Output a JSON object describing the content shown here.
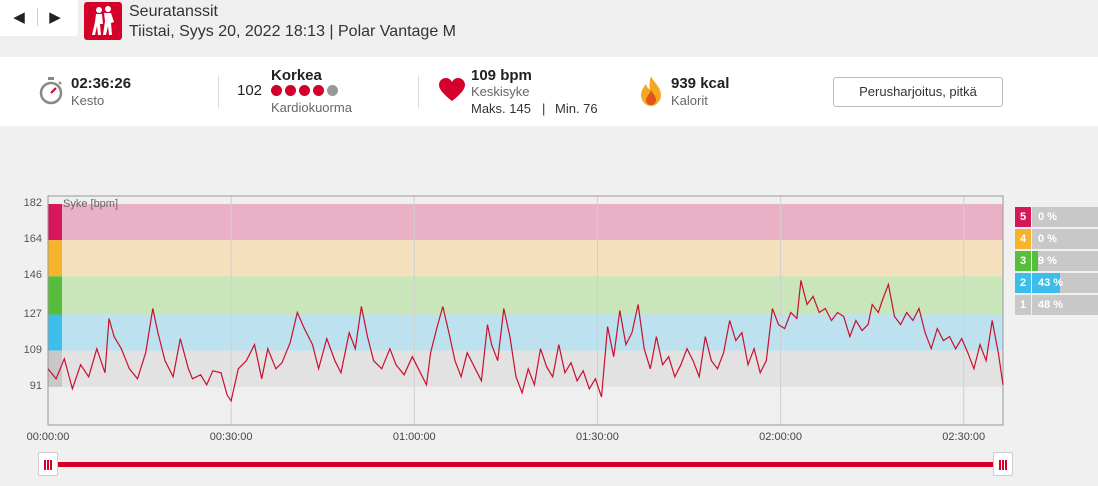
{
  "nav": {
    "prev_glyph": "◀",
    "next_glyph": "▶"
  },
  "header": {
    "sport_icon": "dancing-couple-icon",
    "title": "Seuratanssit",
    "subtitle": "Tiistai, Syys 20, 2022 18:13 | Polar Vantage M"
  },
  "summary": {
    "duration": {
      "icon": "stopwatch-icon",
      "value": "02:36:26",
      "label": "Kesto"
    },
    "cardio_load": {
      "value": "102",
      "level": "Korkea",
      "label": "Kardiokuorma",
      "dots_total": 5,
      "dots_filled": 4
    },
    "heart_rate": {
      "icon": "heart-icon",
      "value": "109 bpm",
      "label": "Keskisyke",
      "max": "Maks. 145",
      "separator": "|",
      "min": "Min. 76"
    },
    "calories": {
      "icon": "flame-icon",
      "value": "939 kcal",
      "label": "Kalorit"
    },
    "training_type_button": "Perusharjoitus, pitkä"
  },
  "chart_data": {
    "type": "line",
    "series_label": "Syke [bpm]",
    "y_ticks": [
      "182",
      "164",
      "146",
      "127",
      "109",
      "91"
    ],
    "y_values": [
      182,
      164,
      146,
      127,
      109,
      91
    ],
    "ylim": [
      72,
      186
    ],
    "x_ticks": [
      "00:00:00",
      "00:30:00",
      "01:00:00",
      "01:30:00",
      "02:00:00",
      "02:30:00"
    ],
    "x_tick_seconds": [
      0,
      1800,
      3600,
      5400,
      7200,
      9000
    ],
    "x_range_seconds": [
      0,
      9386
    ],
    "zones": [
      {
        "zone": "5",
        "from": 164,
        "to": 182,
        "color": "#eab1c6",
        "marker": "#d6175a"
      },
      {
        "zone": "4",
        "from": 146,
        "to": 164,
        "color": "#f5e0bd",
        "marker": "#f7b32b"
      },
      {
        "zone": "3",
        "from": 127,
        "to": 146,
        "color": "#c9e6bb",
        "marker": "#57bd3c"
      },
      {
        "zone": "2",
        "from": 109,
        "to": 127,
        "color": "#bde1ef",
        "marker": "#3dbde9"
      },
      {
        "zone": "1",
        "from": 91,
        "to": 109,
        "color": "#e2e2e2",
        "marker": "#c8c8c8"
      }
    ],
    "line_color": "#c8102e",
    "hr_points": [
      [
        0,
        100
      ],
      [
        80,
        95
      ],
      [
        160,
        105
      ],
      [
        240,
        90
      ],
      [
        320,
        102
      ],
      [
        400,
        96
      ],
      [
        480,
        110
      ],
      [
        560,
        98
      ],
      [
        600,
        125
      ],
      [
        650,
        116
      ],
      [
        720,
        110
      ],
      [
        800,
        100
      ],
      [
        880,
        95
      ],
      [
        960,
        108
      ],
      [
        1030,
        130
      ],
      [
        1080,
        118
      ],
      [
        1150,
        104
      ],
      [
        1230,
        96
      ],
      [
        1300,
        115
      ],
      [
        1380,
        100
      ],
      [
        1420,
        95
      ],
      [
        1500,
        97
      ],
      [
        1560,
        92
      ],
      [
        1620,
        99
      ],
      [
        1700,
        98
      ],
      [
        1760,
        87
      ],
      [
        1800,
        84
      ],
      [
        1870,
        100
      ],
      [
        1950,
        104
      ],
      [
        2030,
        112
      ],
      [
        2100,
        95
      ],
      [
        2160,
        110
      ],
      [
        2240,
        100
      ],
      [
        2300,
        103
      ],
      [
        2380,
        113
      ],
      [
        2450,
        128
      ],
      [
        2520,
        120
      ],
      [
        2600,
        112
      ],
      [
        2660,
        100
      ],
      [
        2740,
        115
      ],
      [
        2820,
        104
      ],
      [
        2880,
        98
      ],
      [
        2960,
        118
      ],
      [
        3020,
        110
      ],
      [
        3080,
        131
      ],
      [
        3140,
        116
      ],
      [
        3200,
        104
      ],
      [
        3280,
        100
      ],
      [
        3360,
        110
      ],
      [
        3420,
        102
      ],
      [
        3500,
        97
      ],
      [
        3580,
        106
      ],
      [
        3640,
        100
      ],
      [
        3720,
        92
      ],
      [
        3760,
        108
      ],
      [
        3820,
        120
      ],
      [
        3880,
        131
      ],
      [
        3940,
        118
      ],
      [
        4000,
        104
      ],
      [
        4060,
        96
      ],
      [
        4120,
        108
      ],
      [
        4200,
        100
      ],
      [
        4260,
        94
      ],
      [
        4320,
        122
      ],
      [
        4360,
        112
      ],
      [
        4420,
        104
      ],
      [
        4480,
        130
      ],
      [
        4540,
        116
      ],
      [
        4600,
        96
      ],
      [
        4660,
        88
      ],
      [
        4720,
        100
      ],
      [
        4780,
        92
      ],
      [
        4840,
        110
      ],
      [
        4900,
        101
      ],
      [
        4960,
        96
      ],
      [
        5020,
        112
      ],
      [
        5080,
        98
      ],
      [
        5140,
        103
      ],
      [
        5200,
        94
      ],
      [
        5260,
        99
      ],
      [
        5320,
        90
      ],
      [
        5380,
        95
      ],
      [
        5440,
        86
      ],
      [
        5500,
        121
      ],
      [
        5560,
        106
      ],
      [
        5620,
        129
      ],
      [
        5680,
        112
      ],
      [
        5740,
        118
      ],
      [
        5800,
        132
      ],
      [
        5860,
        110
      ],
      [
        5920,
        100
      ],
      [
        5980,
        116
      ],
      [
        6040,
        102
      ],
      [
        6100,
        106
      ],
      [
        6160,
        96
      ],
      [
        6220,
        102
      ],
      [
        6280,
        110
      ],
      [
        6340,
        104
      ],
      [
        6400,
        96
      ],
      [
        6460,
        116
      ],
      [
        6520,
        104
      ],
      [
        6580,
        100
      ],
      [
        6640,
        108
      ],
      [
        6700,
        124
      ],
      [
        6760,
        114
      ],
      [
        6820,
        118
      ],
      [
        6880,
        102
      ],
      [
        6940,
        110
      ],
      [
        7000,
        98
      ],
      [
        7060,
        104
      ],
      [
        7120,
        130
      ],
      [
        7180,
        122
      ],
      [
        7240,
        120
      ],
      [
        7300,
        128
      ],
      [
        7360,
        125
      ],
      [
        7400,
        144
      ],
      [
        7460,
        132
      ],
      [
        7520,
        136
      ],
      [
        7580,
        128
      ],
      [
        7640,
        130
      ],
      [
        7700,
        124
      ],
      [
        7760,
        128
      ],
      [
        7820,
        126
      ],
      [
        7880,
        116
      ],
      [
        7940,
        124
      ],
      [
        8000,
        119
      ],
      [
        8060,
        122
      ],
      [
        8100,
        132
      ],
      [
        8160,
        128
      ],
      [
        8200,
        134
      ],
      [
        8260,
        142
      ],
      [
        8320,
        126
      ],
      [
        8380,
        122
      ],
      [
        8440,
        128
      ],
      [
        8500,
        124
      ],
      [
        8560,
        130
      ],
      [
        8620,
        118
      ],
      [
        8680,
        110
      ],
      [
        8740,
        120
      ],
      [
        8800,
        114
      ],
      [
        8860,
        116
      ],
      [
        8920,
        110
      ],
      [
        8980,
        115
      ],
      [
        9040,
        108
      ],
      [
        9100,
        100
      ],
      [
        9160,
        112
      ],
      [
        9220,
        104
      ],
      [
        9280,
        124
      ],
      [
        9340,
        108
      ],
      [
        9386,
        92
      ]
    ]
  },
  "zone_legend": [
    {
      "num": "5",
      "pct": "0 %",
      "fraction": 0.0,
      "color": "#d6175a"
    },
    {
      "num": "4",
      "pct": "0 %",
      "fraction": 0.0,
      "color": "#f7b32b"
    },
    {
      "num": "3",
      "pct": "9 %",
      "fraction": 0.09,
      "color": "#57bd3c"
    },
    {
      "num": "2",
      "pct": "43 %",
      "fraction": 0.43,
      "color": "#3dbde9"
    },
    {
      "num": "1",
      "pct": "48 %",
      "fraction": 0.48,
      "color": "#c8c8c8"
    }
  ],
  "range_slider": {
    "start_fraction": 0.0,
    "end_fraction": 1.0
  }
}
